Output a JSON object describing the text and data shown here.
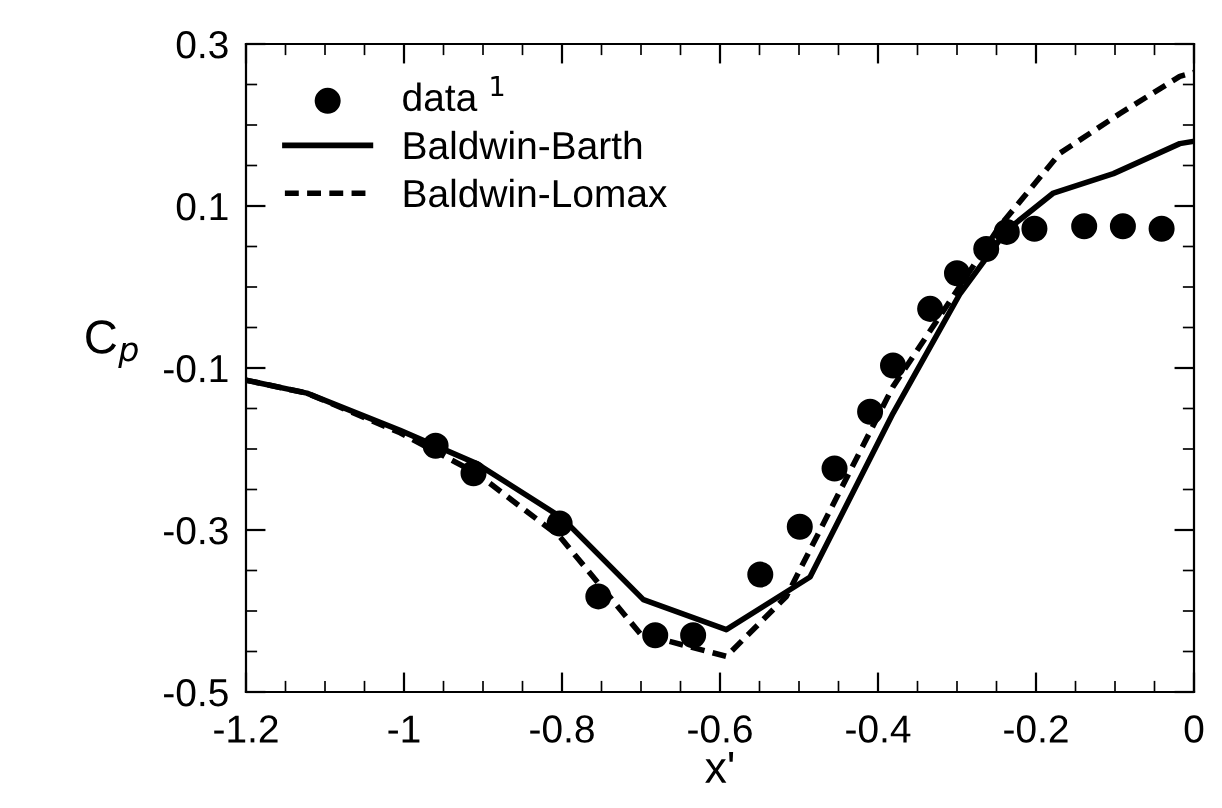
{
  "chart_data": {
    "type": "line",
    "xlabel": "x'",
    "ylabel": "C$_{p}$",
    "xlim": [
      -1.2,
      0
    ],
    "ylim": [
      -0.5,
      0.3
    ],
    "xticks": [
      -1.2,
      -1,
      -0.8,
      -0.6,
      -0.4,
      -0.2,
      0
    ],
    "yticks": [
      -0.5,
      -0.3,
      -0.1,
      0.1,
      0.3
    ],
    "legend": "top left",
    "grid": false,
    "series": [
      {
        "name": "data $^{1}$",
        "type": "scatter",
        "marker": "circle",
        "color": "#000000",
        "x": [
          -0.96,
          -0.912,
          -0.803,
          -0.754,
          -0.682,
          -0.634,
          -0.549,
          -0.499,
          -0.455,
          -0.41,
          -0.381,
          -0.334,
          -0.3,
          -0.263,
          -0.237,
          -0.202,
          -0.139,
          -0.09,
          -0.041
        ],
        "values": [
          -0.196,
          -0.23,
          -0.292,
          -0.382,
          -0.43,
          -0.43,
          -0.355,
          -0.296,
          -0.224,
          -0.154,
          -0.097,
          -0.027,
          0.017,
          0.047,
          0.068,
          0.072,
          0.075,
          0.075,
          0.072
        ]
      },
      {
        "name": "Baldwin-Barth",
        "line_style": "solid",
        "color": "#000000",
        "x": [
          -1.2,
          -1.123,
          -1.005,
          -0.908,
          -0.8,
          -0.697,
          -0.592,
          -0.486,
          -0.381,
          -0.296,
          -0.237,
          -0.178,
          -0.102,
          -0.018,
          0
        ],
        "values": [
          -0.115,
          -0.131,
          -0.177,
          -0.218,
          -0.285,
          -0.386,
          -0.423,
          -0.358,
          -0.156,
          -0.008,
          0.07,
          0.116,
          0.14,
          0.177,
          0.18
        ]
      },
      {
        "name": "Baldwin-Lomax",
        "line_style": "dashed",
        "color": "#000000",
        "x": [
          -1.2,
          -1.123,
          -1.005,
          -0.908,
          -0.803,
          -0.701,
          -0.592,
          -0.516,
          -0.381,
          -0.246,
          -0.17,
          -0.094,
          -0.018,
          0
        ],
        "values": [
          -0.115,
          -0.131,
          -0.18,
          -0.23,
          -0.308,
          -0.428,
          -0.456,
          -0.382,
          -0.123,
          0.075,
          0.165,
          0.214,
          0.26,
          0.265
        ]
      }
    ]
  }
}
